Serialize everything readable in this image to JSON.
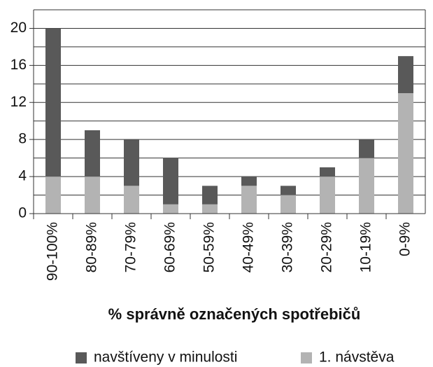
{
  "chart_data": {
    "type": "bar",
    "stacked": true,
    "xlabel": "% správně označených spotřebičů",
    "categories": [
      "90-100%",
      "80-89%",
      "70-79%",
      "60-69%",
      "50-59%",
      "40-49%",
      "30-39%",
      "20-29%",
      "10-19%",
      "0-9%"
    ],
    "series": [
      {
        "name": "navštíveny v minulosti",
        "color": "#595959",
        "values": [
          16,
          5,
          5,
          5,
          2,
          1,
          1,
          1,
          2,
          4
        ]
      },
      {
        "name": "1. návstěva",
        "color": "#b3b3b3",
        "values": [
          4,
          4,
          3,
          1,
          1,
          3,
          2,
          4,
          6,
          13
        ]
      }
    ],
    "ylim": [
      0,
      22
    ],
    "yticks": [
      0,
      4,
      8,
      12,
      16,
      20
    ],
    "minor_yticks": [
      2,
      6,
      10,
      14,
      18,
      22
    ],
    "grid": true
  }
}
